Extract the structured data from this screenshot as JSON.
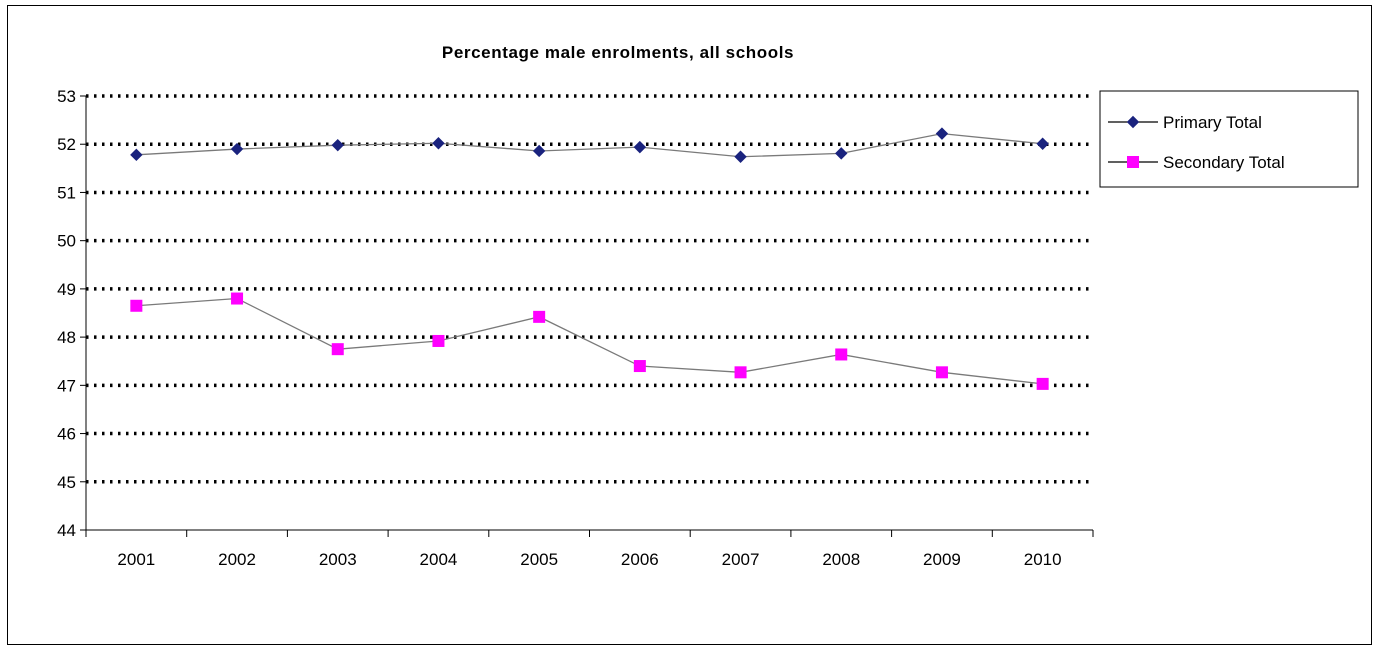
{
  "chart_data": {
    "type": "line",
    "title": "Percentage male enrolments, all schools",
    "xlabel": "",
    "ylabel": "",
    "categories": [
      "2001",
      "2002",
      "2003",
      "2004",
      "2005",
      "2006",
      "2007",
      "2008",
      "2009",
      "2010"
    ],
    "ylim": [
      44,
      53
    ],
    "yticks": [
      "44",
      "45",
      "46",
      "47",
      "48",
      "49",
      "50",
      "51",
      "52",
      "53"
    ],
    "grid": "horizontal dotted",
    "legend_position": "right",
    "series": [
      {
        "name": "Primary Total",
        "color": "#1a237e",
        "marker": "diamond",
        "values": [
          51.78,
          51.9,
          51.98,
          52.02,
          51.86,
          51.94,
          51.74,
          51.81,
          52.22,
          52.01
        ]
      },
      {
        "name": "Secondary Total",
        "color": "#ff00ff",
        "marker": "square",
        "values": [
          48.65,
          48.8,
          47.75,
          47.92,
          48.42,
          47.4,
          47.27,
          47.64,
          47.27,
          47.03
        ]
      }
    ]
  }
}
